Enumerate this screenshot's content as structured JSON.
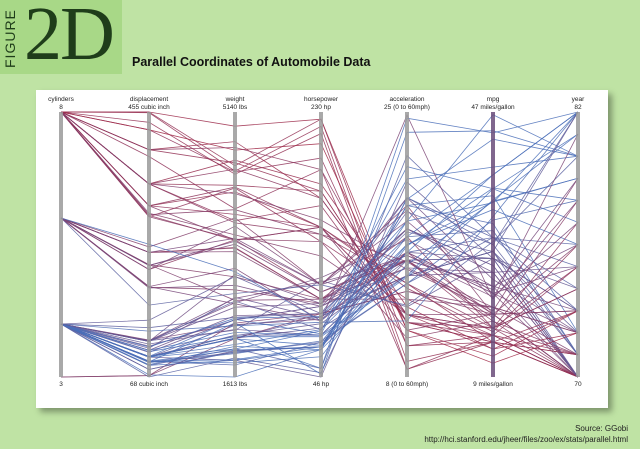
{
  "figure": {
    "word": "FIGURE",
    "number": "2D"
  },
  "title": "Parallel Coordinates of Automobile Data",
  "source": "Source: GGobi",
  "url": "http://hci.stanford.edu/jheer/files/zoo/ex/stats/parallel.html",
  "colors": {
    "low": "#4a6fb8",
    "high": "#a8203a",
    "axis": "#9a9a9a",
    "background": "#bfe3a4"
  },
  "chart_data": {
    "type": "parallel-coordinates",
    "title": "Parallel Coordinates of Automobile Data",
    "axes": [
      {
        "name": "cylinders",
        "top_label": "8",
        "bottom_label": "3",
        "min": 3,
        "max": 8
      },
      {
        "name": "displacement",
        "top_label": "455 cubic inch",
        "bottom_label": "68 cubic inch",
        "min": 68,
        "max": 455
      },
      {
        "name": "weight",
        "top_label": "5140 lbs",
        "bottom_label": "1613 lbs",
        "min": 1613,
        "max": 5140
      },
      {
        "name": "horsepower",
        "top_label": "230 hp",
        "bottom_label": "46 hp",
        "min": 46,
        "max": 230
      },
      {
        "name": "acceleration",
        "top_label": "25 (0 to 60mph)",
        "bottom_label": "8 (0 to 60mph)",
        "min": 8,
        "max": 25
      },
      {
        "name": "mpg",
        "top_label": "47 miles/gallon",
        "bottom_label": "9 miles/gallon",
        "min": 9,
        "max": 47
      },
      {
        "name": "year",
        "top_label": "82",
        "bottom_label": "70",
        "min": 70,
        "max": 82
      }
    ],
    "records": [
      [
        8,
        307,
        3504,
        130,
        12.0,
        18,
        70
      ],
      [
        8,
        350,
        3693,
        165,
        11.5,
        15,
        70
      ],
      [
        8,
        318,
        3436,
        150,
        11.0,
        18,
        70
      ],
      [
        8,
        304,
        3433,
        150,
        12.0,
        16,
        70
      ],
      [
        8,
        302,
        3449,
        140,
        10.5,
        17,
        70
      ],
      [
        8,
        429,
        4341,
        198,
        10.0,
        15,
        70
      ],
      [
        8,
        454,
        4354,
        220,
        9.0,
        14,
        70
      ],
      [
        8,
        440,
        4312,
        215,
        8.5,
        14,
        70
      ],
      [
        8,
        455,
        4425,
        225,
        10.0,
        14,
        70
      ],
      [
        8,
        390,
        3850,
        190,
        8.5,
        15,
        70
      ],
      [
        4,
        113,
        2372,
        95,
        15.0,
        24,
        70
      ],
      [
        6,
        198,
        2833,
        95,
        15.5,
        22,
        70
      ],
      [
        6,
        199,
        2774,
        97,
        15.5,
        18,
        70
      ],
      [
        6,
        200,
        2587,
        85,
        16.0,
        21,
        70
      ],
      [
        4,
        97,
        2130,
        88,
        14.5,
        27,
        70
      ],
      [
        4,
        97,
        1835,
        46,
        20.5,
        26,
        70
      ],
      [
        4,
        110,
        2672,
        87,
        17.5,
        25,
        70
      ],
      [
        4,
        107,
        2430,
        90,
        14.5,
        24,
        70
      ],
      [
        4,
        104,
        2375,
        95,
        17.5,
        25,
        70
      ],
      [
        4,
        121,
        2234,
        113,
        12.5,
        26,
        70
      ],
      [
        8,
        350,
        4165,
        175,
        11.5,
        14,
        71
      ],
      [
        8,
        400,
        4464,
        175,
        11.5,
        14,
        71
      ],
      [
        6,
        225,
        3439,
        105,
        15.5,
        16,
        71
      ],
      [
        6,
        250,
        3329,
        100,
        15.5,
        17,
        71
      ],
      [
        4,
        140,
        2408,
        90,
        19.5,
        28,
        71
      ],
      [
        4,
        98,
        2130,
        80,
        14.5,
        27,
        71
      ],
      [
        4,
        79,
        1950,
        67,
        19.0,
        31,
        71
      ],
      [
        4,
        91,
        1773,
        70,
        17.0,
        30,
        71
      ],
      [
        6,
        232,
        2634,
        100,
        13.0,
        19,
        71
      ],
      [
        8,
        318,
        3777,
        150,
        12.0,
        15,
        71
      ],
      [
        8,
        400,
        4746,
        170,
        12.0,
        13,
        72
      ],
      [
        8,
        429,
        4633,
        208,
        11.0,
        11,
        72
      ],
      [
        4,
        122,
        2310,
        86,
        16.0,
        21,
        72
      ],
      [
        4,
        97,
        2300,
        88,
        14.5,
        27,
        72
      ],
      [
        4,
        71,
        1613,
        65,
        19.0,
        35,
        72
      ],
      [
        3,
        70,
        2124,
        90,
        13.5,
        19,
        72
      ],
      [
        4,
        120,
        2979,
        97,
        19.5,
        23,
        72
      ],
      [
        6,
        250,
        3282,
        100,
        15.0,
        19,
        72
      ],
      [
        8,
        350,
        4499,
        180,
        12.5,
        13,
        73
      ],
      [
        8,
        455,
        4951,
        225,
        11.0,
        12,
        73
      ],
      [
        8,
        318,
        4077,
        150,
        14.0,
        14,
        73
      ],
      [
        6,
        232,
        2945,
        100,
        16.0,
        18,
        73
      ],
      [
        4,
        98,
        2164,
        83,
        15.5,
        26,
        73
      ],
      [
        4,
        116,
        2246,
        75,
        16.0,
        26,
        73
      ],
      [
        3,
        70,
        2330,
        90,
        13.5,
        18,
        73
      ],
      [
        4,
        121,
        2660,
        112,
        15.5,
        22,
        73
      ],
      [
        6,
        250,
        3336,
        100,
        17.0,
        16,
        74
      ],
      [
        4,
        90,
        1937,
        70,
        14.0,
        29,
        74
      ],
      [
        4,
        68,
        1867,
        49,
        19.5,
        29,
        73
      ],
      [
        8,
        350,
        3664,
        145,
        14.0,
        16,
        74
      ],
      [
        4,
        79,
        1963,
        67,
        15.5,
        26,
        74
      ],
      [
        6,
        250,
        3459,
        110,
        18.0,
        21,
        75
      ],
      [
        4,
        97,
        2171,
        75,
        16.0,
        29,
        75
      ],
      [
        8,
        400,
        4668,
        190,
        11.5,
        16,
        75
      ],
      [
        8,
        302,
        4129,
        140,
        13.0,
        15,
        75
      ],
      [
        4,
        120,
        2542,
        97,
        17.5,
        24,
        75
      ],
      [
        6,
        258,
        3730,
        110,
        19.0,
        18,
        76
      ],
      [
        4,
        85,
        1990,
        52,
        22.2,
        29,
        76
      ],
      [
        4,
        98,
        2045,
        79,
        16.5,
        33,
        76
      ],
      [
        8,
        318,
        4140,
        150,
        13.7,
        15.5,
        76
      ],
      [
        4,
        121,
        2600,
        115,
        16.8,
        22,
        76
      ],
      [
        4,
        97,
        1985,
        78,
        21.5,
        36,
        77
      ],
      [
        8,
        350,
        4380,
        170,
        12.0,
        16,
        77
      ],
      [
        6,
        231,
        3380,
        105,
        15.8,
        20.5,
        77
      ],
      [
        4,
        91,
        1800,
        60,
        16.4,
        36.1,
        78
      ],
      [
        4,
        89,
        1925,
        71,
        14.0,
        31.5,
        78
      ],
      [
        6,
        225,
        3620,
        110,
        18.7,
        20.2,
        78
      ],
      [
        8,
        305,
        3840,
        145,
        15.4,
        17.5,
        78
      ],
      [
        4,
        98,
        2120,
        68,
        16.5,
        34.1,
        79
      ],
      [
        8,
        350,
        4054,
        155,
        14.9,
        18.5,
        79
      ],
      [
        4,
        86,
        2020,
        65,
        15.2,
        34.2,
        79
      ],
      [
        6,
        231,
        3420,
        110,
        15.8,
        21.5,
        79
      ],
      [
        4,
        85,
        1835,
        65,
        19.4,
        43.1,
        80
      ],
      [
        4,
        98,
        2380,
        76,
        20.7,
        39.1,
        80
      ],
      [
        4,
        90,
        2335,
        48,
        23.7,
        44.3,
        80
      ],
      [
        4,
        91,
        1970,
        67,
        18.0,
        46.6,
        80
      ],
      [
        6,
        173,
        2725,
        110,
        12.6,
        28.4,
        80
      ],
      [
        4,
        107,
        2205,
        75,
        14.5,
        36,
        81
      ],
      [
        4,
        105,
        2150,
        74,
        14.4,
        34.4,
        81
      ],
      [
        6,
        200,
        3060,
        85,
        24.8,
        20.2,
        81
      ],
      [
        4,
        112,
        2395,
        88,
        18.0,
        34,
        82
      ],
      [
        4,
        135,
        2295,
        84,
        11.6,
        32,
        82
      ],
      [
        4,
        97,
        2130,
        52,
        24.6,
        44,
        82
      ],
      [
        4,
        120,
        2625,
        79,
        18.6,
        28,
        82
      ],
      [
        6,
        262,
        3015,
        85,
        17.0,
        38,
        82
      ],
      [
        4,
        91,
        1845,
        67,
        16.0,
        38,
        82
      ],
      [
        4,
        151,
        2950,
        90,
        17.3,
        27,
        82
      ]
    ]
  }
}
